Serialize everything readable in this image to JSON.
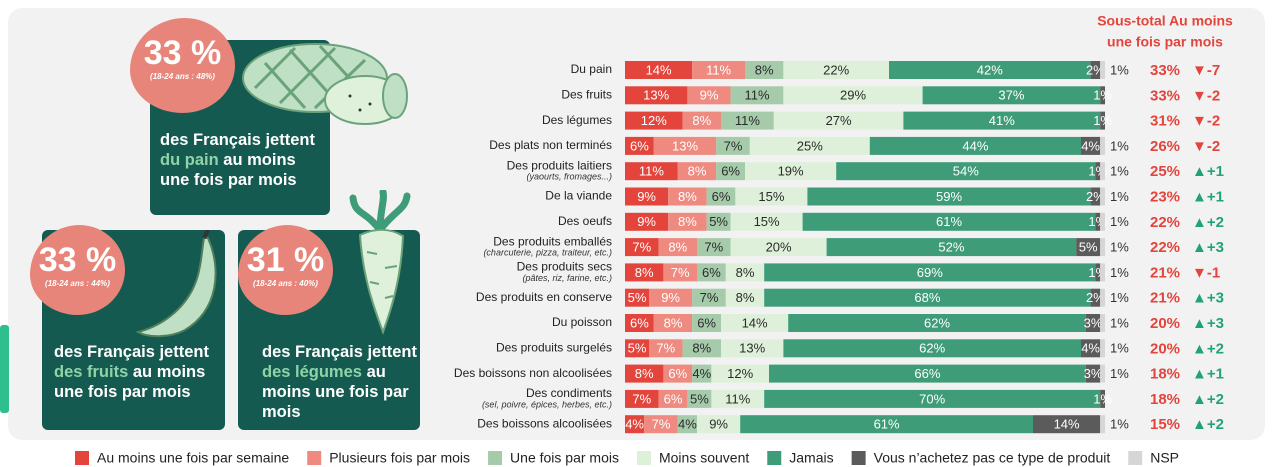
{
  "chart_data": {
    "type": "stacked_bar_h",
    "categories": [
      "Du pain",
      "Des fruits",
      "Des légumes",
      "Des plats non terminés",
      "Des produits laitiers",
      "De la viande",
      "Des oeufs",
      "Des produits emballés",
      "Des produits secs",
      "Des produits en conserve",
      "Du poisson",
      "Des produits surgelés",
      "Des boissons non alcoolisées",
      "Des condiments",
      "Des boissons alcoolisées"
    ],
    "category_notes": [
      null,
      null,
      null,
      null,
      "(yaourts, fromages...)",
      null,
      null,
      "(charcuterie, pizza, traiteur, etc.)",
      "(pâtes, riz, farine, etc.)",
      null,
      null,
      null,
      null,
      "(sel, poivre, épices, herbes, etc.)",
      null
    ],
    "series": [
      {
        "name": "Au moins une fois par semaine",
        "color": "#e3443c",
        "text_color": "#ffffff",
        "values": [
          14,
          13,
          12,
          6,
          11,
          9,
          9,
          7,
          8,
          5,
          6,
          5,
          8,
          7,
          4
        ],
        "value_labels": [
          "14%",
          "13%",
          "12%",
          "6%",
          "11%",
          "9%",
          "9%",
          "7%",
          "8%",
          "5%",
          "6%",
          "5%",
          "8%",
          "7%",
          "4%"
        ]
      },
      {
        "name": "Plusieurs fois par mois",
        "color": "#ee8a80",
        "text_color": "#ffffff",
        "values": [
          11,
          9,
          8,
          13,
          8,
          8,
          8,
          8,
          7,
          9,
          8,
          7,
          6,
          6,
          7
        ],
        "value_labels": [
          "11%",
          "9%",
          "8%",
          "13%",
          "8%",
          "8%",
          "8%",
          "8%",
          "7%",
          "9%",
          "8%",
          "7%",
          "6%",
          "6%",
          "7%"
        ]
      },
      {
        "name": "Une fois par mois",
        "color": "#a6cbab",
        "text_color": "#2b2b2b",
        "values": [
          8,
          11,
          11,
          7,
          6,
          6,
          5,
          7,
          6,
          7,
          6,
          8,
          4,
          5,
          4
        ],
        "value_labels": [
          "8%",
          "11%",
          "11%",
          "7%",
          "6%",
          "6%",
          "5%",
          "7%",
          "6%",
          "7%",
          "6%",
          "8%",
          "4%",
          "5%",
          "4%"
        ]
      },
      {
        "name": "Moins souvent",
        "color": "#def0d9",
        "text_color": "#2b2b2b",
        "values": [
          22,
          29,
          27,
          25,
          19,
          15,
          15,
          20,
          8,
          8,
          14,
          13,
          12,
          11,
          9
        ],
        "value_labels": [
          "22%",
          "29%",
          "27%",
          "25%",
          "19%",
          "15%",
          "15%",
          "20%",
          "8%",
          "8%",
          "14%",
          "13%",
          "12%",
          "11%",
          "9%"
        ]
      },
      {
        "name": "Jamais",
        "color": "#3e9c79",
        "text_color": "#ffffff",
        "values": [
          42,
          37,
          41,
          44,
          54,
          59,
          61,
          52,
          69,
          68,
          62,
          62,
          66,
          70,
          61
        ],
        "value_labels": [
          "42%",
          "37%",
          "41%",
          "44%",
          "54%",
          "59%",
          "61%",
          "52%",
          "69%",
          "68%",
          "62%",
          "62%",
          "66%",
          "70%",
          "61%"
        ]
      },
      {
        "name": "Vous n’achetez pas ce type de produit",
        "color": "#5b5b5b",
        "text_color": "#ffffff",
        "values": [
          2,
          1,
          1,
          4,
          1,
          2,
          1,
          5,
          1,
          2,
          3,
          4,
          3,
          1,
          14
        ],
        "value_labels": [
          "2%",
          "1%",
          "1%",
          "4%",
          "1%",
          "2%",
          "1%",
          "5%",
          "1%",
          "2%",
          "3%",
          "4%",
          "3%",
          "1%",
          "14%"
        ]
      },
      {
        "name": "NSP",
        "color": "#d6d6d6",
        "text_color": "#2b2b2b",
        "values": [
          1,
          null,
          null,
          1,
          1,
          1,
          1,
          1,
          1,
          1,
          1,
          1,
          1,
          null,
          1
        ],
        "value_labels": [
          "1%",
          null,
          null,
          "1%",
          "1%",
          "1%",
          "1%",
          "1%",
          "1%",
          "1%",
          "1%",
          "1%",
          "1%",
          null,
          "1%"
        ]
      }
    ],
    "subtotal_title": [
      "Sous-total Au moins",
      "une fois par mois"
    ],
    "subtotal": {
      "color": "#e3443c",
      "values": [
        33,
        33,
        31,
        26,
        25,
        23,
        22,
        22,
        21,
        21,
        20,
        20,
        18,
        18,
        15
      ],
      "value_labels": [
        "33%",
        "33%",
        "31%",
        "26%",
        "25%",
        "23%",
        "22%",
        "22%",
        "21%",
        "21%",
        "20%",
        "20%",
        "18%",
        "18%",
        "15%"
      ]
    },
    "change": {
      "down_color": "#e3443c",
      "up_color": "#21a37a",
      "values": [
        -7,
        -2,
        -2,
        -2,
        1,
        1,
        2,
        3,
        -1,
        3,
        3,
        2,
        1,
        2,
        2
      ],
      "value_labels": [
        "▼-7",
        "▼-2",
        "▼-2",
        "▼-2",
        "▲+1",
        "▲+1",
        "▲+2",
        "▲+3",
        "▼-1",
        "▲+3",
        "▲+3",
        "▲+2",
        "▲+1",
        "▲+2",
        "▲+2"
      ]
    },
    "legend": "bottom"
  },
  "cards": [
    {
      "percent": "33 %",
      "youth": "(18-24 ans : 48%)",
      "text_before": "des Français jettent",
      "highlight": "du pain",
      "text_after": "au moins une fois par mois"
    },
    {
      "percent": "33 %",
      "youth": "(18-24 ans : 44%)",
      "text_before": "des Français jettent",
      "highlight": "des fruits",
      "text_after": "au moins une fois par mois"
    },
    {
      "percent": "31 %",
      "youth": "(18-24 ans : 40%)",
      "text_before": "des Français jettent",
      "highlight": "des légumes",
      "text_after": "au moins une fois par mois"
    }
  ]
}
